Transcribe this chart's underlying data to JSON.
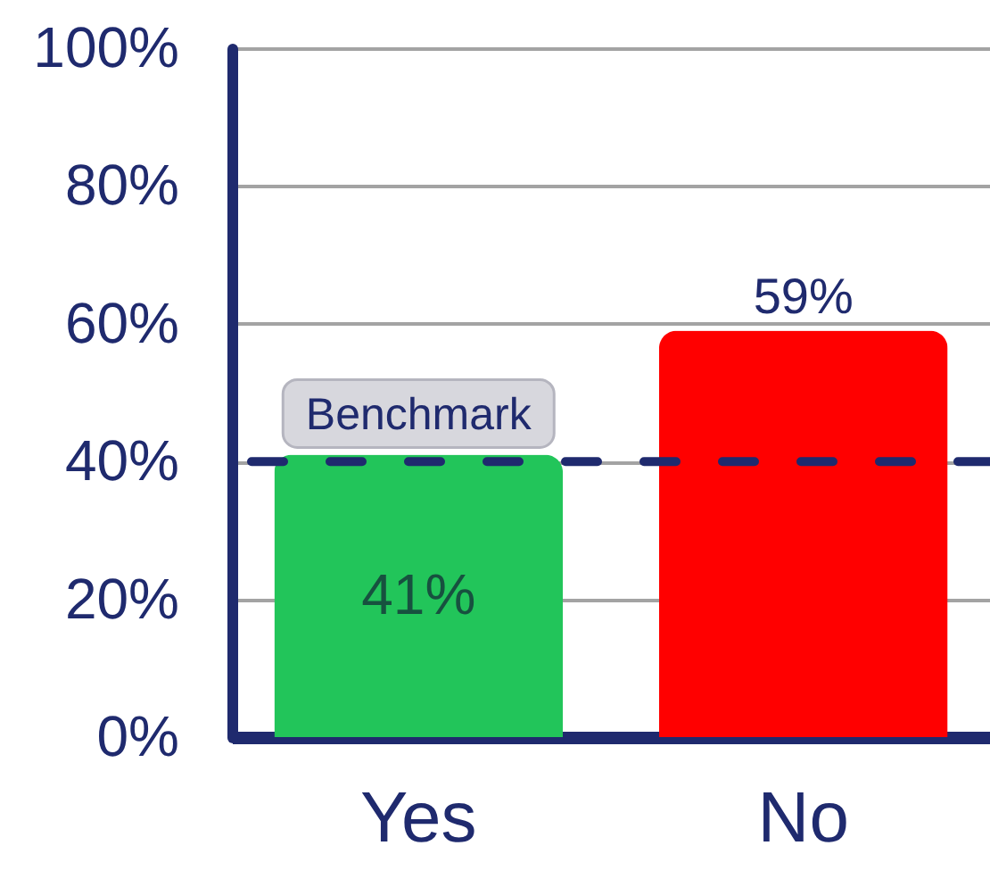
{
  "chart_data": {
    "type": "bar",
    "categories": [
      "Yes",
      "No"
    ],
    "values": [
      41,
      59
    ],
    "colors": [
      "#22c55a",
      "#ff0000"
    ],
    "value_labels": [
      "41%",
      "59%"
    ],
    "ylim": [
      0,
      100
    ],
    "yticks": [
      {
        "value": 0,
        "label": "0%"
      },
      {
        "value": 20,
        "label": "20%"
      },
      {
        "value": 40,
        "label": "40%"
      },
      {
        "value": 60,
        "label": "60%"
      },
      {
        "value": 80,
        "label": "80%"
      },
      {
        "value": 100,
        "label": "100%"
      }
    ],
    "grid": "y",
    "ref_lines": [
      {
        "axis": "y",
        "value": 40,
        "label": "Benchmark",
        "color": "#1f2a6e",
        "line_style": "dashed"
      }
    ]
  }
}
